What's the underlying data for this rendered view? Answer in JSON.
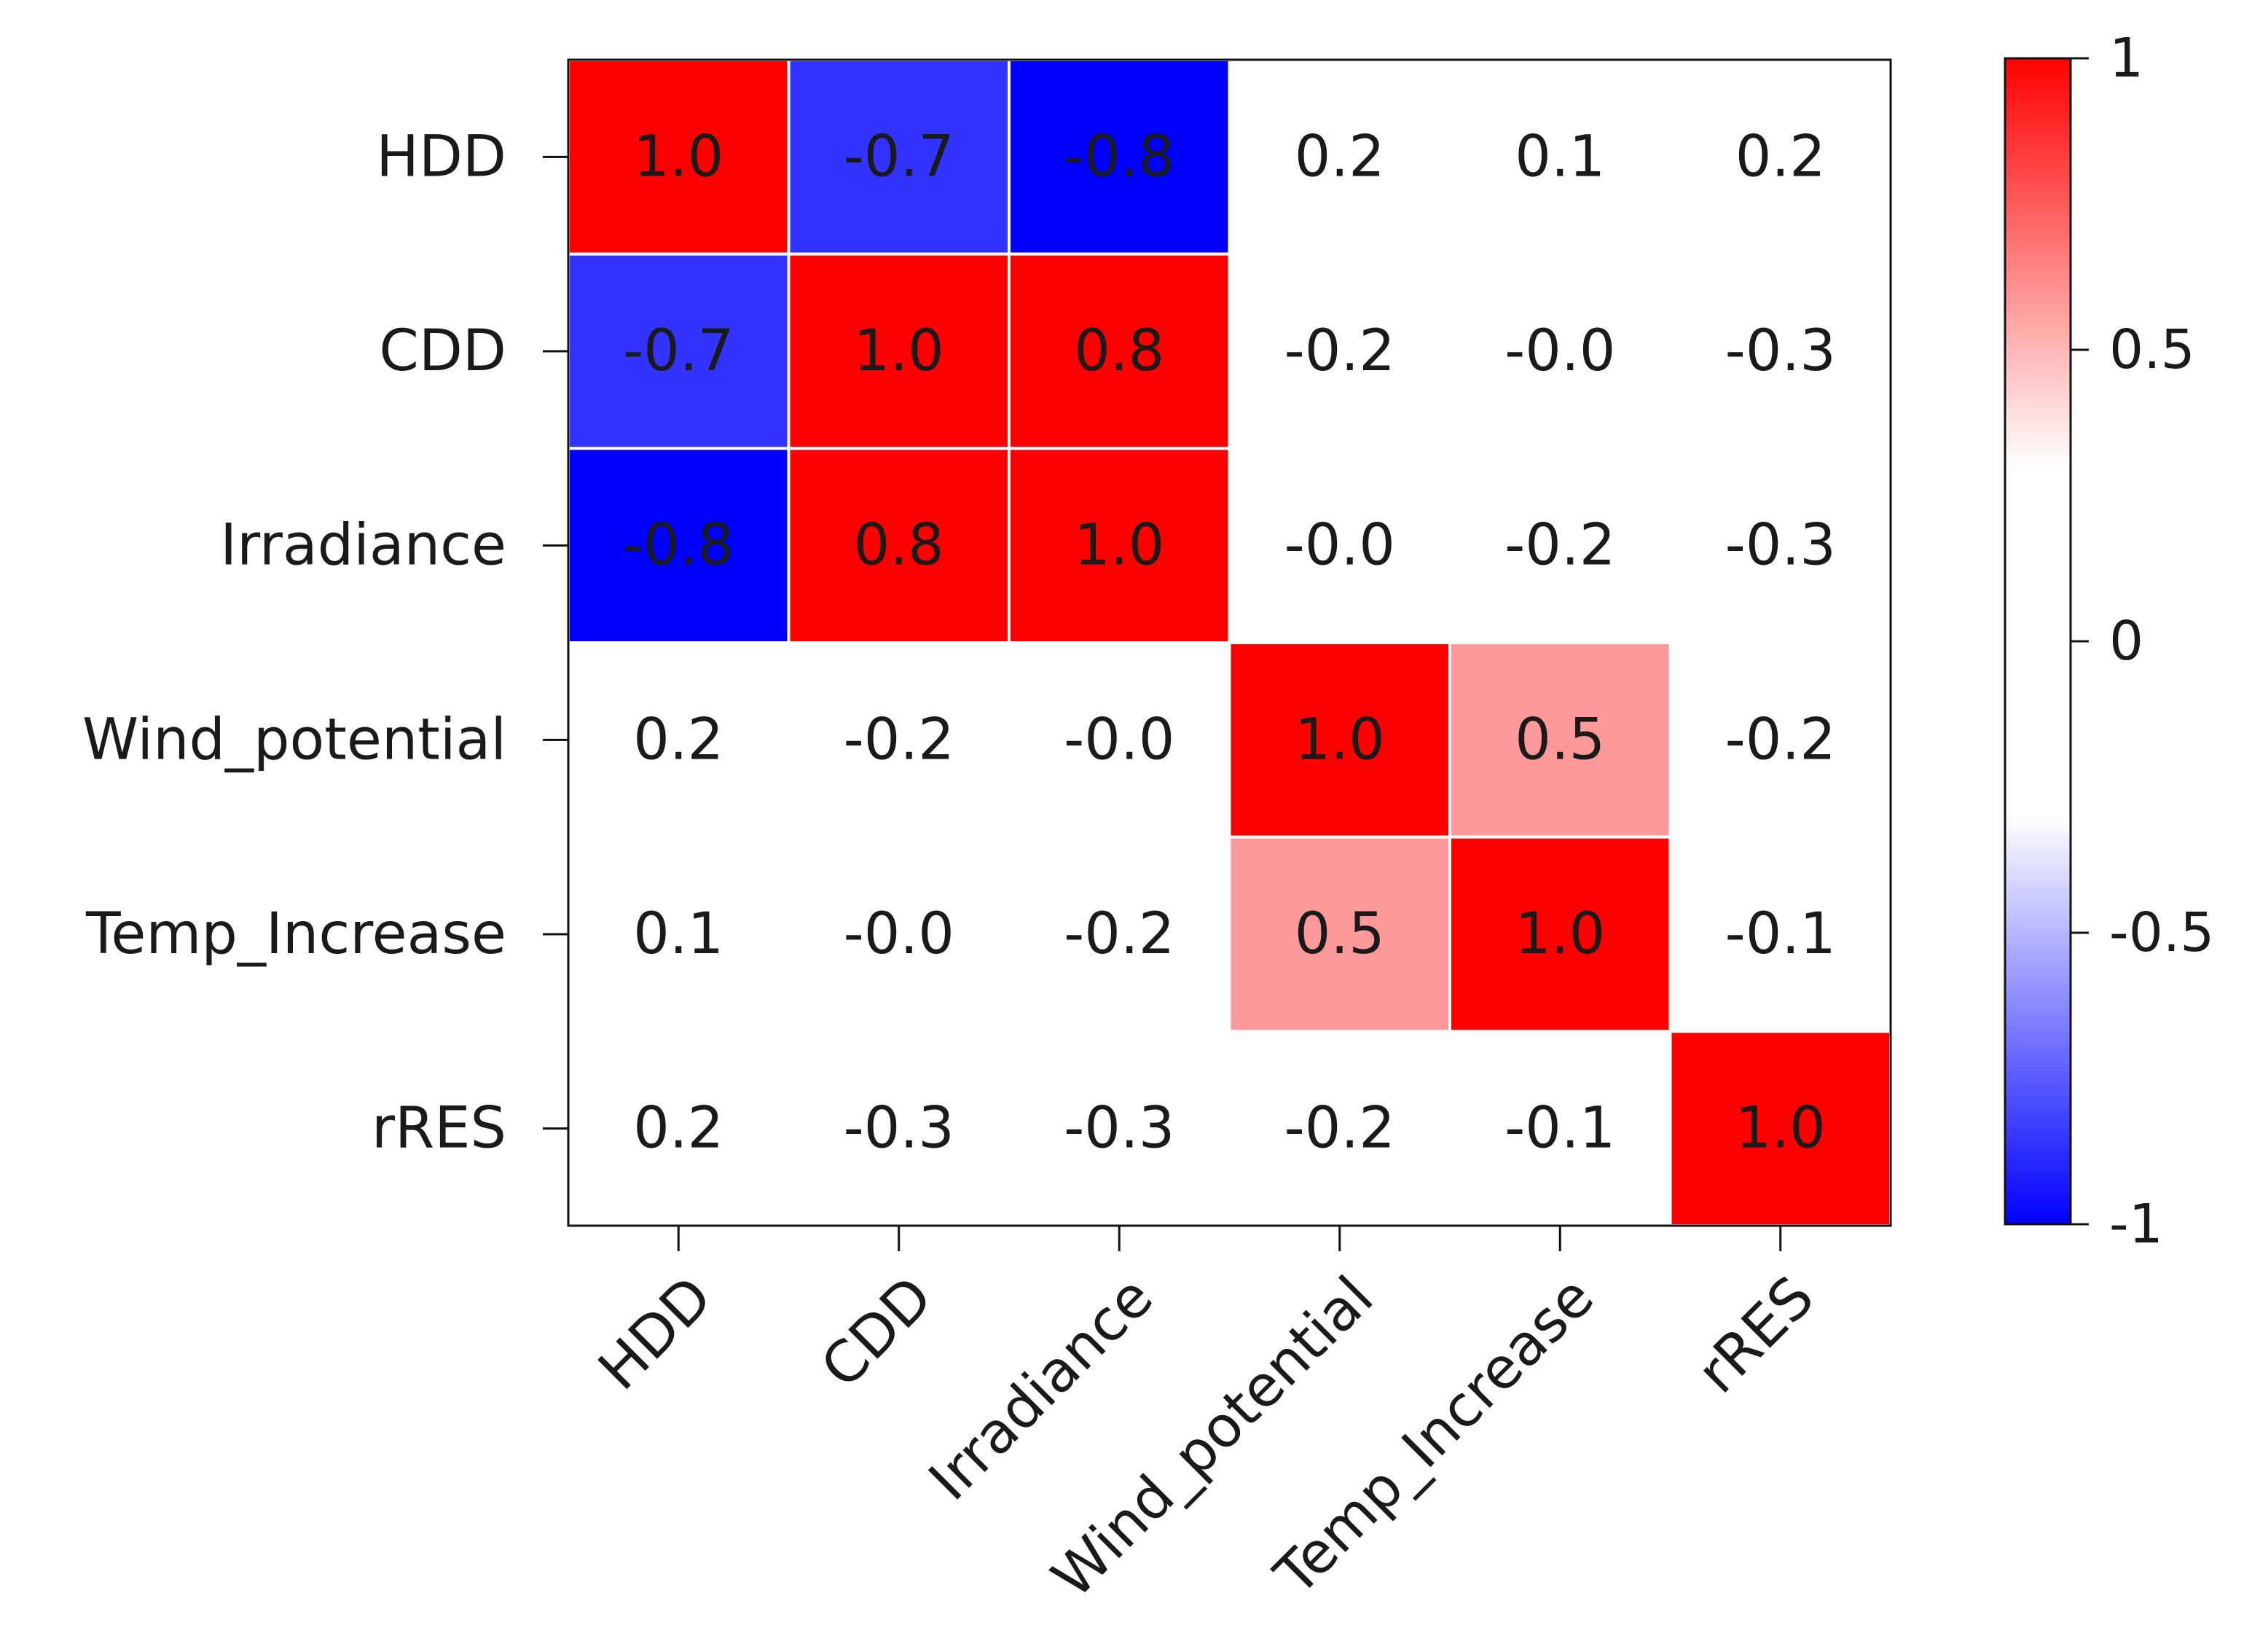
{
  "chart_data": {
    "type": "heatmap",
    "title": "",
    "variables": [
      "HDD",
      "CDD",
      "Irradiance",
      "Wind_potential",
      "Temp_Increase",
      "rRES"
    ],
    "values": [
      [
        1.0,
        -0.7,
        -0.8,
        0.2,
        0.1,
        0.2
      ],
      [
        -0.7,
        1.0,
        0.8,
        -0.2,
        -0.0,
        -0.3
      ],
      [
        -0.8,
        0.8,
        1.0,
        -0.0,
        -0.2,
        -0.3
      ],
      [
        0.2,
        -0.2,
        -0.0,
        1.0,
        0.5,
        -0.2
      ],
      [
        0.1,
        -0.0,
        -0.2,
        0.5,
        1.0,
        -0.1
      ],
      [
        0.2,
        -0.3,
        -0.3,
        -0.2,
        -0.1,
        1.0
      ]
    ],
    "cell_labels": [
      [
        "1.0",
        "-0.7",
        "-0.8",
        "0.2",
        "0.1",
        "0.2"
      ],
      [
        "-0.7",
        "1.0",
        "0.8",
        "-0.2",
        "-0.0",
        "-0.3"
      ],
      [
        "-0.8",
        "0.8",
        "1.0",
        "-0.0",
        "-0.2",
        "-0.3"
      ],
      [
        "0.2",
        "-0.2",
        "-0.0",
        "1.0",
        "0.5",
        "-0.2"
      ],
      [
        "0.1",
        "-0.0",
        "-0.2",
        "0.5",
        "1.0",
        "-0.1"
      ],
      [
        "0.2",
        "-0.3",
        "-0.3",
        "-0.2",
        "-0.1",
        "1.0"
      ]
    ],
    "threshold": 0.3,
    "colorbar": {
      "range": [
        -1,
        1
      ],
      "ticks": [
        1,
        0.5,
        0,
        -0.5,
        -1
      ],
      "tick_labels": [
        "1",
        "0.5",
        "0",
        "-0.5",
        "-1"
      ]
    },
    "colors": {
      "positive": "#ff0000",
      "negative": "#0000ff",
      "neutral": "#ffffff",
      "text": "#1a1a1a",
      "cell_border": "#ffffff"
    }
  }
}
